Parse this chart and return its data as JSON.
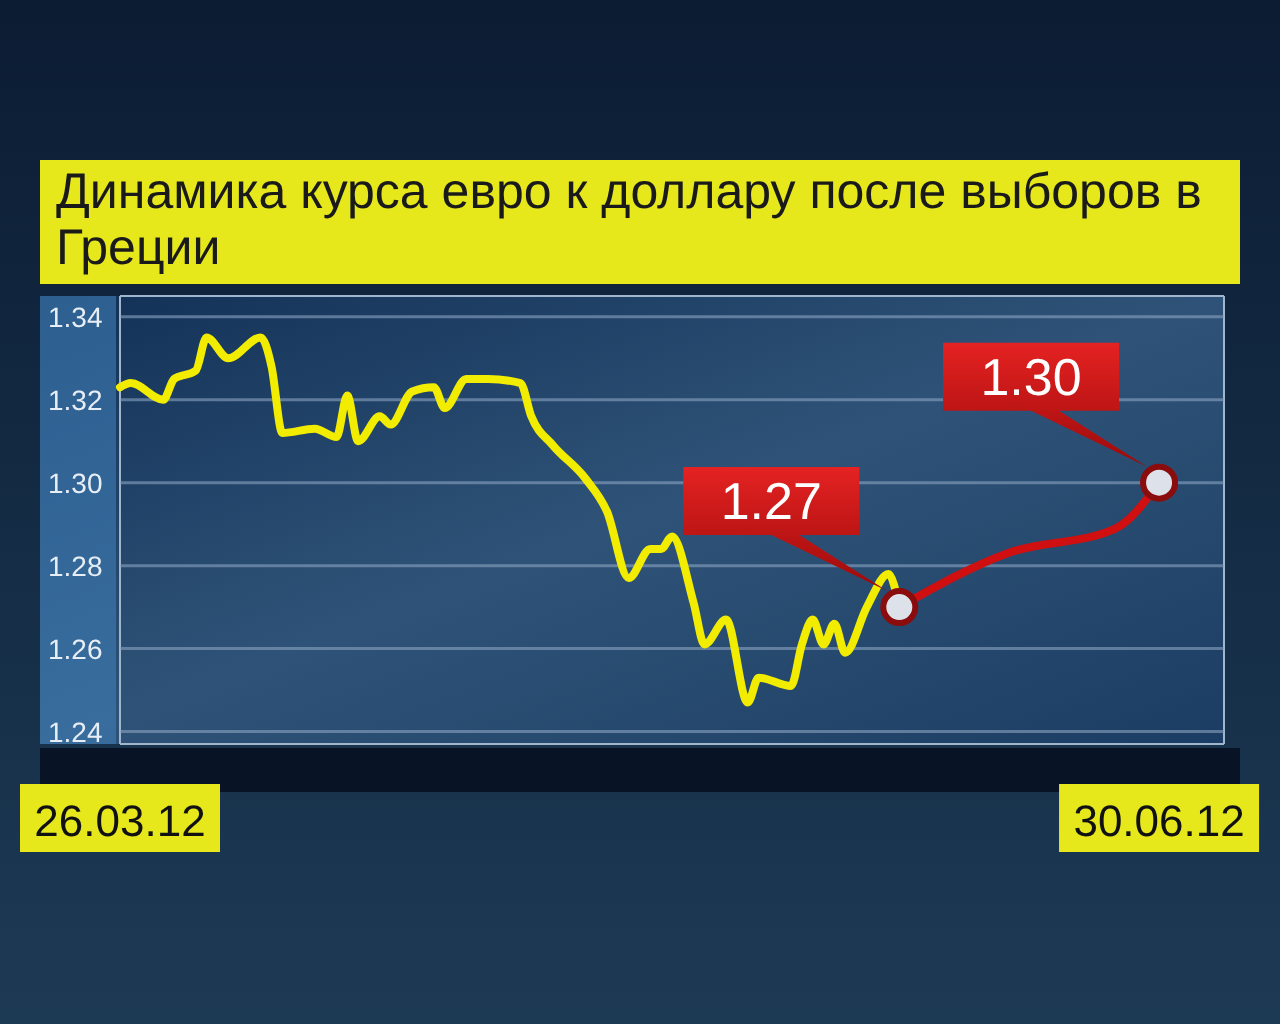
{
  "chart_data": {
    "type": "line",
    "title": "Динамика курса евро к доллару после выборов в Греции",
    "xlim": [
      "2012-03-26",
      "2012-07-06"
    ],
    "xticks": [
      {
        "value": "2012-03-26",
        "label": "26.03.12"
      },
      {
        "value": "2012-06-30",
        "label": "30.06.12"
      }
    ],
    "ylim": [
      1.237,
      1.345
    ],
    "yticks": [
      1.24,
      1.26,
      1.28,
      {
        "value": 1.3,
        "label": "1.30"
      },
      1.32,
      1.34
    ],
    "grid": "y",
    "series": [
      {
        "color": "#f2ec00",
        "marker": "none",
        "x": [
          "2012-03-26",
          "2012-03-27",
          "2012-03-30",
          "2012-03-31",
          "2012-04-02",
          "2012-04-03",
          "2012-04-05",
          "2012-04-08",
          "2012-04-09",
          "2012-04-10",
          "2012-04-13",
          "2012-04-15",
          "2012-04-16",
          "2012-04-17",
          "2012-04-19",
          "2012-04-20",
          "2012-04-22",
          "2012-04-24",
          "2012-04-25",
          "2012-04-27",
          "2012-04-29",
          "2012-05-02",
          "2012-05-03",
          "2012-05-05",
          "2012-05-08",
          "2012-05-10",
          "2012-05-12",
          "2012-05-14",
          "2012-05-15",
          "2012-05-16",
          "2012-05-18",
          "2012-05-19",
          "2012-05-21",
          "2012-05-23",
          "2012-05-24",
          "2012-05-27",
          "2012-05-28",
          "2012-05-29",
          "2012-05-30",
          "2012-05-31",
          "2012-06-01",
          "2012-06-03",
          "2012-06-05",
          "2012-06-06"
        ],
        "values": [
          1.323,
          1.324,
          1.32,
          1.325,
          1.327,
          1.335,
          1.33,
          1.335,
          1.328,
          1.312,
          1.313,
          1.311,
          1.321,
          1.31,
          1.316,
          1.314,
          1.322,
          1.323,
          1.318,
          1.325,
          1.325,
          1.324,
          1.316,
          1.309,
          1.301,
          1.293,
          1.277,
          1.284,
          1.284,
          1.287,
          1.271,
          1.261,
          1.267,
          1.247,
          1.253,
          1.251,
          1.261,
          1.267,
          1.261,
          1.266,
          1.259,
          1.27,
          1.278,
          1.27
        ]
      },
      {
        "color": "#d01010",
        "marker": "none",
        "x": [
          "2012-06-06",
          "2012-06-16",
          "2012-06-26",
          "2012-06-30"
        ],
        "values": [
          1.27,
          1.283,
          1.289,
          1.3
        ]
      },
      {
        "type": "scatter",
        "color": "#dde2ea",
        "marker": "circle",
        "x": [
          "2012-06-06",
          "2012-06-30"
        ],
        "values": [
          1.27,
          1.3
        ]
      }
    ],
    "annotations": [
      {
        "text": "1.27",
        "x": "2012-06-06",
        "y": 1.27
      },
      {
        "text": "1.30",
        "x": "2012-06-30",
        "y": 1.3
      }
    ]
  }
}
